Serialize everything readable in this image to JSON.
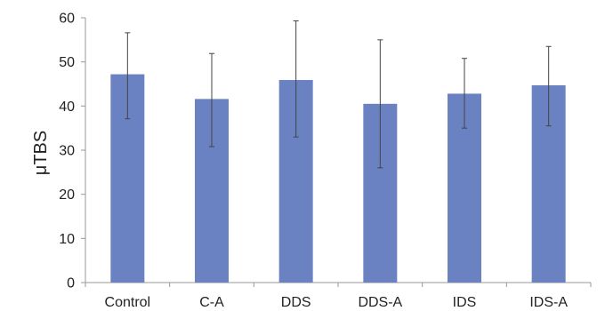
{
  "chart_data": {
    "type": "bar",
    "categories": [
      "Control",
      "C-A",
      "DDS",
      "DDS-A",
      "IDS",
      "IDS-A"
    ],
    "values": [
      47.2,
      41.6,
      45.9,
      40.5,
      42.8,
      44.7
    ],
    "error_upper": [
      56.6,
      51.9,
      59.3,
      55.0,
      50.8,
      53.5
    ],
    "error_lower": [
      37.1,
      30.8,
      33.0,
      26.0,
      35.0,
      35.5
    ],
    "ylabel": "μTBS",
    "ylim": [
      0,
      60
    ],
    "yticks": [
      0,
      10,
      20,
      30,
      40,
      50,
      60
    ],
    "grid": false,
    "legend": "none",
    "colors": {
      "bar": "#6b82c2",
      "error_bar": "#444444",
      "axis": "#999999"
    }
  }
}
